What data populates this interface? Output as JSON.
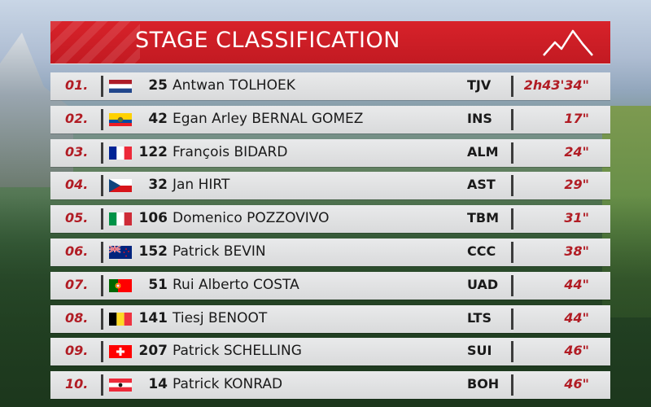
{
  "header": {
    "title": "STAGE CLASSIFICATION"
  },
  "colors": {
    "accent_red": "#c21a22",
    "row_bg": "#e2e3e4",
    "text_dark": "#1a1a1a"
  },
  "rows": [
    {
      "pos": "01.",
      "flag": "netherlands-flag",
      "bib": "25",
      "rider": "Antwan TOLHOEK",
      "team": "TJV",
      "time": "2h43'34\""
    },
    {
      "pos": "02.",
      "flag": "ecuador-flag",
      "bib": "42",
      "rider": "Egan Arley BERNAL GOMEZ",
      "team": "INS",
      "time": "17\""
    },
    {
      "pos": "03.",
      "flag": "france-flag",
      "bib": "122",
      "rider": "François BIDARD",
      "team": "ALM",
      "time": "24\""
    },
    {
      "pos": "04.",
      "flag": "czechia-flag",
      "bib": "32",
      "rider": "Jan HIRT",
      "team": "AST",
      "time": "29\""
    },
    {
      "pos": "05.",
      "flag": "italy-flag",
      "bib": "106",
      "rider": "Domenico POZZOVIVO",
      "team": "TBM",
      "time": "31\""
    },
    {
      "pos": "06.",
      "flag": "new-zealand-flag",
      "bib": "152",
      "rider": "Patrick BEVIN",
      "team": "CCC",
      "time": "38\""
    },
    {
      "pos": "07.",
      "flag": "portugal-flag",
      "bib": "51",
      "rider": "Rui Alberto COSTA",
      "team": "UAD",
      "time": "44\""
    },
    {
      "pos": "08.",
      "flag": "belgium-flag",
      "bib": "141",
      "rider": "Tiesj BENOOT",
      "team": "LTS",
      "time": "44\""
    },
    {
      "pos": "09.",
      "flag": "switzerland-flag",
      "bib": "207",
      "rider": "Patrick SCHELLING",
      "team": "SUI",
      "time": "46\""
    },
    {
      "pos": "10.",
      "flag": "austria-flag",
      "bib": "14",
      "rider": "Patrick KONRAD",
      "team": "BOH",
      "time": "46\""
    }
  ]
}
